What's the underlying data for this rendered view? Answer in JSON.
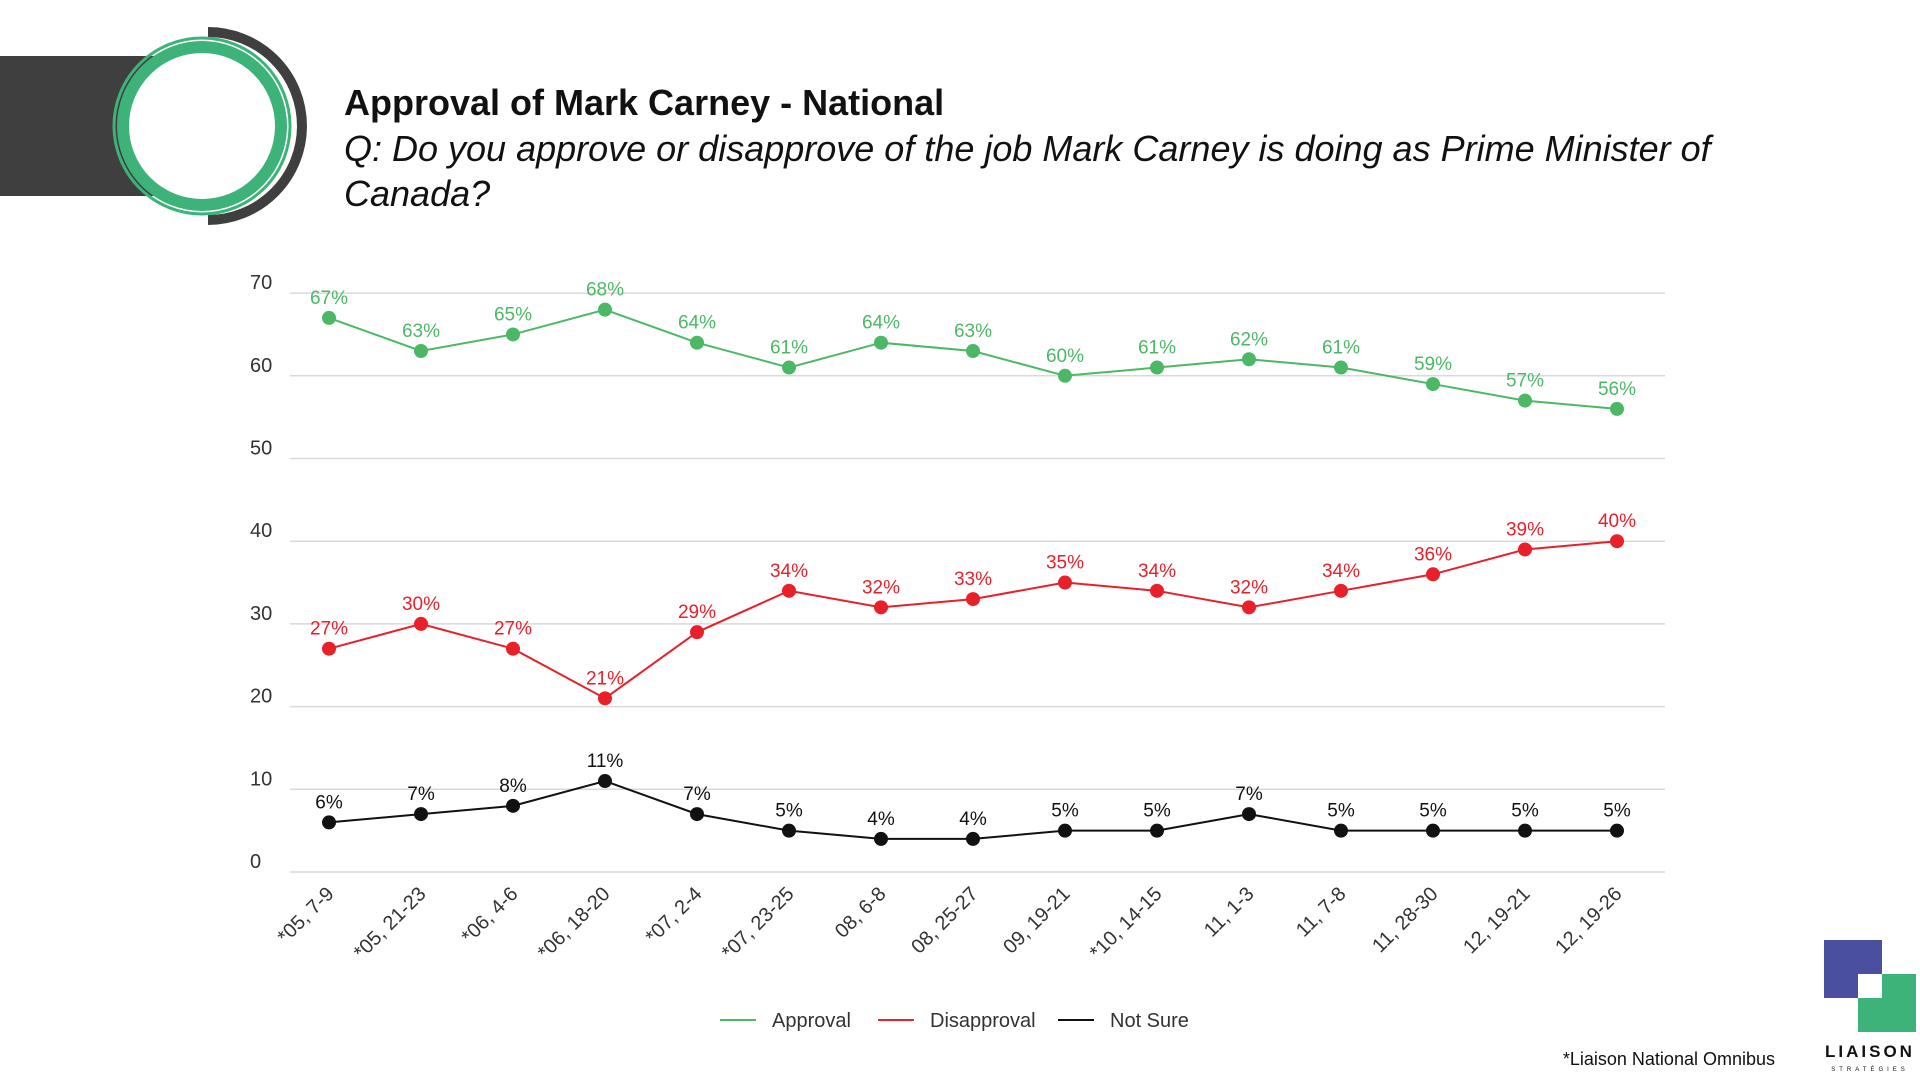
{
  "header": {
    "title": "Approval of Mark Carney - National",
    "question": "Q: Do you approve or disapprove of the job Mark Carney is doing as Prime Minister of Canada?"
  },
  "footnote": "*Liaison National Omnibus",
  "brand": {
    "name": "LIAISON",
    "tagline": "STRATÉGIES"
  },
  "colors": {
    "approval": "#4cb866",
    "disapproval": "#e8202a",
    "not_sure": "#111111",
    "header_bar": "#3f3f3f",
    "ring_green": "#3db37a",
    "logo_blue": "#4a4fa0",
    "logo_green": "#3db37a"
  },
  "chart_data": {
    "type": "line",
    "title": "",
    "xlabel": "",
    "ylabel": "",
    "ylim": [
      0,
      70
    ],
    "yticks": [
      0,
      10,
      20,
      30,
      40,
      50,
      60,
      70
    ],
    "grid": true,
    "legend_position": "bottom",
    "categories": [
      "*05, 7-9",
      "*05, 21-23",
      "*06, 4-6",
      "*06, 18-20",
      "*07, 2-4",
      "*07, 23-25",
      "08, 6-8",
      "08, 25-27",
      "09, 19-21",
      "*10, 14-15",
      "11, 1-3",
      "11, 7-8",
      "11, 28-30",
      "12, 19-21",
      "12, 19-26"
    ],
    "series": [
      {
        "name": "Approval",
        "color": "#4cb866",
        "values": [
          67,
          63,
          65,
          68,
          64,
          61,
          64,
          63,
          60,
          61,
          62,
          61,
          59,
          57,
          56
        ]
      },
      {
        "name": "Disapproval",
        "color": "#e8202a",
        "values": [
          27,
          30,
          27,
          21,
          29,
          34,
          32,
          33,
          35,
          34,
          32,
          34,
          36,
          39,
          40
        ]
      },
      {
        "name": "Not Sure",
        "color": "#111111",
        "values": [
          6,
          7,
          8,
          11,
          7,
          5,
          4,
          4,
          5,
          5,
          7,
          5,
          5,
          5,
          5
        ]
      }
    ]
  }
}
